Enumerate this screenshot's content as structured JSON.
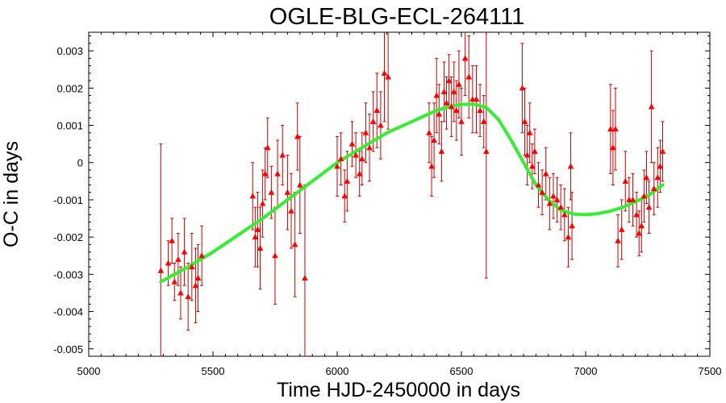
{
  "chart_data": {
    "type": "scatter",
    "title": "OGLE-BLG-ECL-264111",
    "xlabel": "Time HJD-2450000 in days",
    "ylabel": "O-C in days",
    "xlim": [
      5000,
      7500
    ],
    "ylim": [
      -0.0052,
      0.0035
    ],
    "xticks": [
      5000,
      5500,
      6000,
      6500,
      7000,
      7500
    ],
    "yticks": [
      -0.005,
      -0.004,
      -0.003,
      -0.002,
      -0.001,
      0,
      0.001,
      0.002,
      0.003
    ],
    "ytick_labels": [
      "-0.005",
      "-0.004",
      "-0.003",
      "-0.002",
      "-0.001",
      "0",
      "0.001",
      "0.002",
      "0.003"
    ],
    "grid": false,
    "colors": {
      "points": "#ff0000",
      "errorbars": "#cc0000",
      "fit": "#33ee33"
    },
    "series": [
      {
        "kind": "points_with_errorbars",
        "points": [
          {
            "x": 5290,
            "y": -0.0029,
            "e": 0.0034
          },
          {
            "x": 5320,
            "y": -0.0027,
            "e": 0.0006
          },
          {
            "x": 5335,
            "y": -0.0021,
            "e": 0.0006
          },
          {
            "x": 5345,
            "y": -0.0032,
            "e": 0.0005
          },
          {
            "x": 5360,
            "y": -0.0026,
            "e": 0.0007
          },
          {
            "x": 5370,
            "y": -0.0035,
            "e": 0.0007
          },
          {
            "x": 5385,
            "y": -0.0024,
            "e": 0.0009
          },
          {
            "x": 5400,
            "y": -0.0036,
            "e": 0.0009
          },
          {
            "x": 5415,
            "y": -0.0028,
            "e": 0.0009
          },
          {
            "x": 5430,
            "y": -0.0033,
            "e": 0.001
          },
          {
            "x": 5440,
            "y": -0.0031,
            "e": 0.0009
          },
          {
            "x": 5455,
            "y": -0.0025,
            "e": 0.0008
          },
          {
            "x": 5660,
            "y": -0.0009,
            "e": 0.0009
          },
          {
            "x": 5670,
            "y": -0.002,
            "e": 0.0008
          },
          {
            "x": 5680,
            "y": -0.0018,
            "e": 0.001
          },
          {
            "x": 5690,
            "y": -0.0023,
            "e": 0.0011
          },
          {
            "x": 5700,
            "y": -0.0011,
            "e": 0.0009
          },
          {
            "x": 5710,
            "y": -0.0003,
            "e": 0.0007
          },
          {
            "x": 5720,
            "y": 0.0004,
            "e": 0.0008
          },
          {
            "x": 5735,
            "y": -0.0008,
            "e": 0.0007
          },
          {
            "x": 5750,
            "y": -0.0025,
            "e": 0.0013
          },
          {
            "x": 5760,
            "y": -0.0003,
            "e": 0.0009
          },
          {
            "x": 5780,
            "y": 0.0002,
            "e": 0.0008
          },
          {
            "x": 5800,
            "y": -0.0008,
            "e": 0.001
          },
          {
            "x": 5815,
            "y": -0.0013,
            "e": 0.001
          },
          {
            "x": 5830,
            "y": -0.0022,
            "e": 0.0014
          },
          {
            "x": 5840,
            "y": 0.0007,
            "e": 0.0009
          },
          {
            "x": 5850,
            "y": -0.0006,
            "e": 0.0013
          },
          {
            "x": 5870,
            "y": -0.0031,
            "e": 0.0025
          },
          {
            "x": 6000,
            "y": -0.0001,
            "e": 0.0008
          },
          {
            "x": 6015,
            "y": 0.0001,
            "e": 0.0007
          },
          {
            "x": 6030,
            "y": -0.0009,
            "e": 0.0007
          },
          {
            "x": 6040,
            "y": -0.0005,
            "e": 0.0008
          },
          {
            "x": 6060,
            "y": 0.0005,
            "e": 0.0006
          },
          {
            "x": 6075,
            "y": 0.0002,
            "e": 0.0006
          },
          {
            "x": 6090,
            "y": -0.0003,
            "e": 0.0006
          },
          {
            "x": 6100,
            "y": 0.0001,
            "e": 0.0007
          },
          {
            "x": 6115,
            "y": 0.0008,
            "e": 0.0008
          },
          {
            "x": 6130,
            "y": 0.0004,
            "e": 0.0009
          },
          {
            "x": 6145,
            "y": 0.0011,
            "e": 0.0008
          },
          {
            "x": 6160,
            "y": 0.0014,
            "e": 0.001
          },
          {
            "x": 6175,
            "y": 0.001,
            "e": 0.0009
          },
          {
            "x": 6190,
            "y": 0.0024,
            "e": 0.0013
          },
          {
            "x": 6205,
            "y": 0.0023,
            "e": 0.0014
          },
          {
            "x": 6370,
            "y": 0.0008,
            "e": 0.0008
          },
          {
            "x": 6380,
            "y": -0.0001,
            "e": 0.0008
          },
          {
            "x": 6390,
            "y": 0.0006,
            "e": 0.001
          },
          {
            "x": 6400,
            "y": 0.0018,
            "e": 0.001
          },
          {
            "x": 6410,
            "y": 0.0013,
            "e": 0.0008
          },
          {
            "x": 6420,
            "y": 0.0003,
            "e": 0.0008
          },
          {
            "x": 6430,
            "y": 0.0019,
            "e": 0.0008
          },
          {
            "x": 6440,
            "y": 0.0016,
            "e": 0.0007
          },
          {
            "x": 6450,
            "y": 0.0022,
            "e": 0.0007
          },
          {
            "x": 6460,
            "y": 0.0015,
            "e": 0.0008
          },
          {
            "x": 6470,
            "y": 0.0019,
            "e": 0.0008
          },
          {
            "x": 6480,
            "y": 0.0014,
            "e": 0.0008
          },
          {
            "x": 6490,
            "y": 0.0021,
            "e": 0.0009
          },
          {
            "x": 6500,
            "y": 0.0011,
            "e": 0.0009
          },
          {
            "x": 6515,
            "y": 0.0028,
            "e": 0.001
          },
          {
            "x": 6530,
            "y": 0.0023,
            "e": 0.0011
          },
          {
            "x": 6545,
            "y": 0.0017,
            "e": 0.0009
          },
          {
            "x": 6560,
            "y": 0.0017,
            "e": 0.0009
          },
          {
            "x": 6575,
            "y": 0.0014,
            "e": 0.0007
          },
          {
            "x": 6590,
            "y": 0.0011,
            "e": 0.0007
          },
          {
            "x": 6600,
            "y": 0.0003,
            "e": 0.0034
          },
          {
            "x": 6745,
            "y": 0.002,
            "e": 0.0012
          },
          {
            "x": 6755,
            "y": 0.0011,
            "e": 0.0009
          },
          {
            "x": 6765,
            "y": 0.0002,
            "e": 0.0008
          },
          {
            "x": 6775,
            "y": 0.0008,
            "e": 0.0008
          },
          {
            "x": 6785,
            "y": -0.0001,
            "e": 0.0006
          },
          {
            "x": 6795,
            "y": 0.0003,
            "e": 0.0006
          },
          {
            "x": 6810,
            "y": -0.0006,
            "e": 0.0006
          },
          {
            "x": 6825,
            "y": -0.0008,
            "e": 0.0006
          },
          {
            "x": 6840,
            "y": -0.0003,
            "e": 0.0007
          },
          {
            "x": 6855,
            "y": -0.0011,
            "e": 0.0007
          },
          {
            "x": 6870,
            "y": -0.0009,
            "e": 0.0006
          },
          {
            "x": 6885,
            "y": -0.001,
            "e": 0.0006
          },
          {
            "x": 6900,
            "y": -0.0012,
            "e": 0.0006
          },
          {
            "x": 6915,
            "y": -0.0014,
            "e": 0.0007
          },
          {
            "x": 6930,
            "y": -0.002,
            "e": 0.0008
          },
          {
            "x": 6945,
            "y": -0.0017,
            "e": 0.0009
          },
          {
            "x": 6940,
            "y": -0.0001,
            "e": 0.0009
          },
          {
            "x": 7100,
            "y": 0.0009,
            "e": 0.0012
          },
          {
            "x": 7110,
            "y": 0.0004,
            "e": 0.001
          },
          {
            "x": 7120,
            "y": 0.0009,
            "e": 0.0011
          },
          {
            "x": 7130,
            "y": -0.0021,
            "e": 0.0007
          },
          {
            "x": 7145,
            "y": -0.0018,
            "e": 0.0008
          },
          {
            "x": 7160,
            "y": -0.0005,
            "e": 0.0008
          },
          {
            "x": 7175,
            "y": -0.001,
            "e": 0.0006
          },
          {
            "x": 7190,
            "y": -0.001,
            "e": 0.0007
          },
          {
            "x": 7205,
            "y": -0.0014,
            "e": 0.0006
          },
          {
            "x": 7215,
            "y": -0.0019,
            "e": 0.0006
          },
          {
            "x": 7225,
            "y": -0.0017,
            "e": 0.0007
          },
          {
            "x": 7235,
            "y": -0.0009,
            "e": 0.0007
          },
          {
            "x": 7245,
            "y": -0.0004,
            "e": 0.0007
          },
          {
            "x": 7255,
            "y": -0.0012,
            "e": 0.0007
          },
          {
            "x": 7265,
            "y": 0.0015,
            "e": 0.0015
          },
          {
            "x": 7275,
            "y": -0.0007,
            "e": 0.0007
          },
          {
            "x": 7290,
            "y": -0.0004,
            "e": 0.0008
          },
          {
            "x": 7300,
            "y": -0.0001,
            "e": 0.0007
          },
          {
            "x": 7310,
            "y": 0.0003,
            "e": 0.0008
          }
        ]
      },
      {
        "kind": "fit_line",
        "x": [
          5290,
          5400,
          5500,
          5600,
          5700,
          5800,
          5900,
          6000,
          6100,
          6200,
          6300,
          6400,
          6450,
          6500,
          6550,
          6600,
          6650,
          6700,
          6750,
          6800,
          6850,
          6900,
          6950,
          7000,
          7050,
          7100,
          7150,
          7200,
          7250,
          7310
        ],
        "y": [
          -0.0032,
          -0.0028,
          -0.0024,
          -0.00195,
          -0.0015,
          -0.001,
          -0.0005,
          0.0,
          0.0004,
          0.0008,
          0.0011,
          0.0014,
          0.0015,
          0.00156,
          0.00157,
          0.00148,
          0.00115,
          0.0006,
          0.0,
          -0.0006,
          -0.001,
          -0.00128,
          -0.00138,
          -0.0014,
          -0.00137,
          -0.0013,
          -0.0012,
          -0.00105,
          -0.0009,
          -0.0006
        ]
      }
    ]
  }
}
